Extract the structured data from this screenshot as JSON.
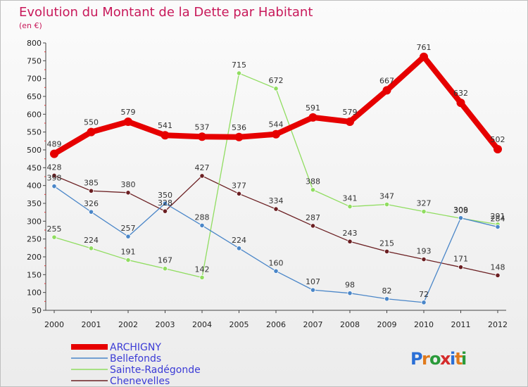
{
  "chart_data": {
    "type": "line",
    "title": "Evolution du Montant de la Dette par Habitant",
    "ylabel": "(en €)",
    "categories": [
      "2000",
      "2001",
      "2002",
      "2003",
      "2004",
      "2005",
      "2006",
      "2007",
      "2008",
      "2009",
      "2010",
      "2011",
      "2012"
    ],
    "ylim": [
      50,
      800
    ],
    "yticks": [
      50,
      100,
      150,
      200,
      250,
      300,
      350,
      400,
      450,
      500,
      550,
      600,
      650,
      700,
      750,
      800
    ],
    "grid": false,
    "legend_position": "bottom-left",
    "series": [
      {
        "name": "ARCHIGNY",
        "color": "#e60000",
        "values": [
          489,
          550,
          579,
          541,
          537,
          536,
          544,
          591,
          579,
          667,
          761,
          632,
          502
        ]
      },
      {
        "name": "Bellefonds",
        "color": "#4a86c8",
        "values": [
          398,
          326,
          257,
          350,
          288,
          224,
          160,
          107,
          98,
          82,
          72,
          309,
          284
        ]
      },
      {
        "name": "Sainte-Radégonde",
        "color": "#90dd60",
        "values": [
          255,
          224,
          191,
          167,
          142,
          715,
          672,
          388,
          341,
          347,
          327,
          308,
          291
        ]
      },
      {
        "name": "Chenevelles",
        "color": "#6b1f22",
        "values": [
          428,
          385,
          380,
          328,
          427,
          377,
          334,
          287,
          243,
          215,
          193,
          171,
          148
        ]
      }
    ]
  },
  "logo": {
    "text": "Proxiti"
  }
}
